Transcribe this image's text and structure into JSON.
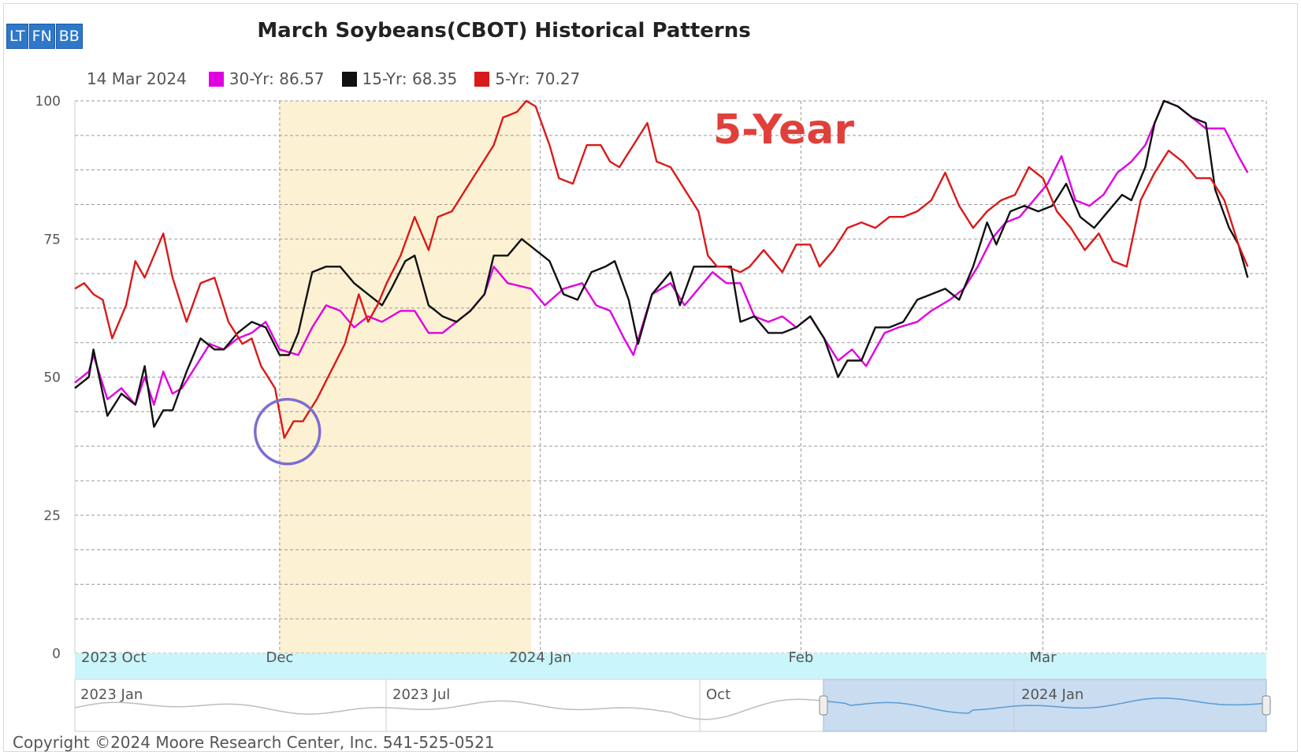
{
  "toolbar": {
    "buttons": [
      {
        "label": "LT"
      },
      {
        "label": "FN"
      },
      {
        "label": "BB"
      }
    ]
  },
  "annotation": {
    "text": "5-Year",
    "color": "#e0403b"
  },
  "copyright": "Copyright ©2024 Moore Research Center, Inc. 541-525-0521",
  "colors": {
    "highlight_band": "#fdf1d3",
    "navigator_strip": "#c9f5fb",
    "navigator_selection": "#c9dcf0",
    "marker_circle": "#7b6fd0"
  },
  "chart_data": {
    "type": "line",
    "title": "March Soybeans(CBOT) Historical Patterns",
    "legend_date": "14 Mar 2024",
    "legend_placement": "top-left",
    "grid": true,
    "ylim": [
      0,
      100
    ],
    "y_ticks": [
      0,
      25,
      50,
      75,
      100
    ],
    "x_ticks": [
      "2023 Oct",
      "Dec",
      "2024 Jan",
      "Feb",
      "Mar"
    ],
    "x_tick_index": [
      0,
      44,
      100,
      156,
      208
    ],
    "x_count": 230,
    "highlight_range_index": [
      44,
      98
    ],
    "circle_marker": {
      "index": 45,
      "value": 39
    },
    "navigator_labels": [
      "2023 Jan",
      "2023 Jul",
      "Oct",
      "2024 Jan"
    ],
    "series": [
      {
        "name": "30-Yr",
        "legend_label": "30-Yr: 86.57",
        "color": "#e000e0",
        "keypoints": [
          [
            0,
            49
          ],
          [
            3,
            51
          ],
          [
            4,
            54
          ],
          [
            7,
            46
          ],
          [
            10,
            48
          ],
          [
            13,
            45
          ],
          [
            15,
            50
          ],
          [
            17,
            45
          ],
          [
            19,
            51
          ],
          [
            21,
            47
          ],
          [
            23,
            48
          ],
          [
            26,
            52
          ],
          [
            29,
            56
          ],
          [
            32,
            55
          ],
          [
            35,
            57
          ],
          [
            38,
            58
          ],
          [
            41,
            60
          ],
          [
            44,
            55
          ],
          [
            48,
            54
          ],
          [
            51,
            59
          ],
          [
            54,
            63
          ],
          [
            57,
            62
          ],
          [
            60,
            59
          ],
          [
            63,
            61
          ],
          [
            66,
            60
          ],
          [
            70,
            62
          ],
          [
            73,
            62
          ],
          [
            76,
            58
          ],
          [
            79,
            58
          ],
          [
            82,
            60
          ],
          [
            85,
            62
          ],
          [
            88,
            65
          ],
          [
            90,
            70
          ],
          [
            93,
            67
          ],
          [
            98,
            66
          ],
          [
            101,
            63
          ],
          [
            105,
            66
          ],
          [
            109,
            67
          ],
          [
            112,
            63
          ],
          [
            115,
            62
          ],
          [
            118,
            57
          ],
          [
            120,
            54
          ],
          [
            124,
            65
          ],
          [
            128,
            67
          ],
          [
            131,
            63
          ],
          [
            134,
            66
          ],
          [
            137,
            69
          ],
          [
            140,
            67
          ],
          [
            143,
            67
          ],
          [
            146,
            61
          ],
          [
            149,
            60
          ],
          [
            152,
            61
          ],
          [
            155,
            59
          ],
          [
            158,
            61
          ],
          [
            161,
            57
          ],
          [
            164,
            53
          ],
          [
            167,
            55
          ],
          [
            170,
            52
          ],
          [
            174,
            58
          ],
          [
            177,
            59
          ],
          [
            181,
            60
          ],
          [
            184,
            62
          ],
          [
            188,
            64
          ],
          [
            191,
            66
          ],
          [
            194,
            70
          ],
          [
            197,
            75
          ],
          [
            200,
            78
          ],
          [
            203,
            79
          ],
          [
            206,
            82
          ],
          [
            209,
            85
          ],
          [
            212,
            90
          ],
          [
            215,
            82
          ],
          [
            218,
            81
          ],
          [
            221,
            83
          ],
          [
            224,
            87
          ],
          [
            227,
            89
          ],
          [
            230,
            92
          ],
          [
            232,
            96
          ],
          [
            234,
            100
          ],
          [
            237,
            99
          ],
          [
            240,
            97
          ],
          [
            243,
            95
          ],
          [
            247,
            95
          ],
          [
            250,
            90
          ],
          [
            252,
            87
          ]
        ]
      },
      {
        "name": "15-Yr",
        "legend_label": "15-Yr: 68.35",
        "color": "#111111",
        "keypoints": [
          [
            0,
            48
          ],
          [
            3,
            50
          ],
          [
            4,
            55
          ],
          [
            7,
            43
          ],
          [
            10,
            47
          ],
          [
            13,
            45
          ],
          [
            15,
            52
          ],
          [
            17,
            41
          ],
          [
            19,
            44
          ],
          [
            21,
            44
          ],
          [
            24,
            51
          ],
          [
            27,
            57
          ],
          [
            30,
            55
          ],
          [
            32,
            55
          ],
          [
            35,
            58
          ],
          [
            38,
            60
          ],
          [
            41,
            59
          ],
          [
            44,
            54
          ],
          [
            46,
            54
          ],
          [
            48,
            58
          ],
          [
            51,
            69
          ],
          [
            54,
            70
          ],
          [
            57,
            70
          ],
          [
            60,
            67
          ],
          [
            63,
            65
          ],
          [
            66,
            63
          ],
          [
            68,
            66
          ],
          [
            71,
            71
          ],
          [
            73,
            72
          ],
          [
            76,
            63
          ],
          [
            79,
            61
          ],
          [
            82,
            60
          ],
          [
            85,
            62
          ],
          [
            88,
            65
          ],
          [
            90,
            72
          ],
          [
            93,
            72
          ],
          [
            96,
            75
          ],
          [
            99,
            73
          ],
          [
            102,
            71
          ],
          [
            105,
            65
          ],
          [
            108,
            64
          ],
          [
            111,
            69
          ],
          [
            114,
            70
          ],
          [
            116,
            71
          ],
          [
            119,
            64
          ],
          [
            121,
            56
          ],
          [
            124,
            65
          ],
          [
            128,
            69
          ],
          [
            130,
            63
          ],
          [
            133,
            70
          ],
          [
            137,
            70
          ],
          [
            139,
            70
          ],
          [
            141,
            70
          ],
          [
            143,
            60
          ],
          [
            146,
            61
          ],
          [
            149,
            58
          ],
          [
            152,
            58
          ],
          [
            155,
            59
          ],
          [
            158,
            61
          ],
          [
            161,
            57
          ],
          [
            164,
            50
          ],
          [
            166,
            53
          ],
          [
            169,
            53
          ],
          [
            172,
            59
          ],
          [
            175,
            59
          ],
          [
            178,
            60
          ],
          [
            181,
            64
          ],
          [
            184,
            65
          ],
          [
            187,
            66
          ],
          [
            190,
            64
          ],
          [
            193,
            70
          ],
          [
            196,
            78
          ],
          [
            198,
            74
          ],
          [
            201,
            80
          ],
          [
            204,
            81
          ],
          [
            207,
            80
          ],
          [
            210,
            81
          ],
          [
            213,
            85
          ],
          [
            216,
            79
          ],
          [
            219,
            77
          ],
          [
            222,
            80
          ],
          [
            225,
            83
          ],
          [
            227,
            82
          ],
          [
            230,
            88
          ],
          [
            232,
            96
          ],
          [
            234,
            100
          ],
          [
            237,
            99
          ],
          [
            240,
            97
          ],
          [
            243,
            96
          ],
          [
            245,
            84
          ],
          [
            248,
            77
          ],
          [
            250,
            74
          ],
          [
            252,
            68
          ]
        ]
      },
      {
        "name": "5-Yr",
        "legend_label": "5-Yr: 70.27",
        "color": "#d91a1a",
        "keypoints": [
          [
            0,
            66
          ],
          [
            2,
            67
          ],
          [
            4,
            65
          ],
          [
            6,
            64
          ],
          [
            8,
            57
          ],
          [
            11,
            63
          ],
          [
            13,
            71
          ],
          [
            15,
            68
          ],
          [
            17,
            72
          ],
          [
            19,
            76
          ],
          [
            21,
            68
          ],
          [
            24,
            60
          ],
          [
            27,
            67
          ],
          [
            30,
            68
          ],
          [
            33,
            60
          ],
          [
            36,
            56
          ],
          [
            38,
            57
          ],
          [
            40,
            52
          ],
          [
            43,
            48
          ],
          [
            45,
            39
          ],
          [
            47,
            42
          ],
          [
            49,
            42
          ],
          [
            52,
            46
          ],
          [
            55,
            51
          ],
          [
            58,
            56
          ],
          [
            61,
            65
          ],
          [
            63,
            60
          ],
          [
            65,
            63
          ],
          [
            67,
            67
          ],
          [
            70,
            72
          ],
          [
            73,
            79
          ],
          [
            76,
            73
          ],
          [
            78,
            79
          ],
          [
            81,
            80
          ],
          [
            84,
            84
          ],
          [
            87,
            88
          ],
          [
            90,
            92
          ],
          [
            92,
            97
          ],
          [
            95,
            98
          ],
          [
            97,
            100
          ],
          [
            99,
            99
          ],
          [
            102,
            92
          ],
          [
            104,
            86
          ],
          [
            107,
            85
          ],
          [
            110,
            92
          ],
          [
            113,
            92
          ],
          [
            115,
            89
          ],
          [
            117,
            88
          ],
          [
            120,
            92
          ],
          [
            123,
            96
          ],
          [
            125,
            89
          ],
          [
            128,
            88
          ],
          [
            131,
            84
          ],
          [
            134,
            80
          ],
          [
            136,
            72
          ],
          [
            138,
            70
          ],
          [
            140,
            70
          ],
          [
            143,
            69
          ],
          [
            145,
            70
          ],
          [
            148,
            73
          ],
          [
            150,
            71
          ],
          [
            152,
            69
          ],
          [
            155,
            74
          ],
          [
            158,
            74
          ],
          [
            160,
            70
          ],
          [
            163,
            73
          ],
          [
            166,
            77
          ],
          [
            169,
            78
          ],
          [
            172,
            77
          ],
          [
            175,
            79
          ],
          [
            178,
            79
          ],
          [
            181,
            80
          ],
          [
            184,
            82
          ],
          [
            187,
            87
          ],
          [
            190,
            81
          ],
          [
            193,
            77
          ],
          [
            196,
            80
          ],
          [
            199,
            82
          ],
          [
            202,
            83
          ],
          [
            205,
            88
          ],
          [
            208,
            86
          ],
          [
            211,
            80
          ],
          [
            214,
            77
          ],
          [
            217,
            73
          ],
          [
            220,
            76
          ],
          [
            223,
            71
          ],
          [
            226,
            70
          ],
          [
            229,
            82
          ],
          [
            232,
            87
          ],
          [
            235,
            91
          ],
          [
            238,
            89
          ],
          [
            241,
            86
          ],
          [
            244,
            86
          ],
          [
            247,
            82
          ],
          [
            250,
            74
          ],
          [
            252,
            70
          ]
        ]
      }
    ]
  }
}
